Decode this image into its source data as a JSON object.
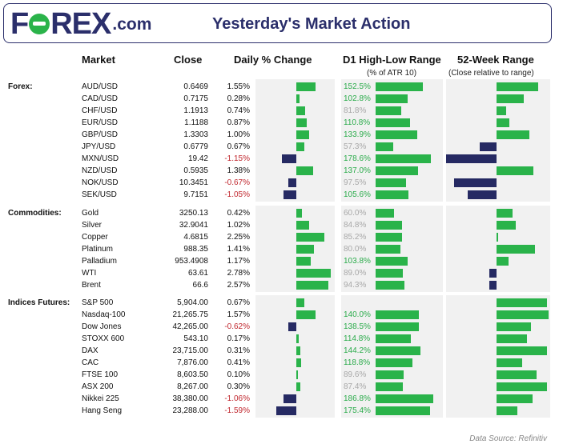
{
  "header": {
    "logo_text": "F",
    "logo_text2": "REX",
    "logo_suffix": ".com",
    "title": "Yesterday's Market Action"
  },
  "columns": {
    "market": "Market",
    "close": "Close",
    "daily": "Daily % Change",
    "d1": "D1 High-Low Range",
    "d1_sub": "(% of ATR 10)",
    "week52": "52-Week Range",
    "week52_sub": "(Close relative to range)"
  },
  "colors": {
    "green": "#2ab34a",
    "navy": "#262a63",
    "red": "#c0262d",
    "grey_text": "#a8a8a8"
  },
  "chart_data": {
    "type": "table",
    "title": "Yesterday's Market Action",
    "groups": [
      {
        "name": "Forex:",
        "rows": [
          {
            "market": "AUD/USD",
            "close": "0.6469",
            "daily": "1.55%",
            "daily_v": 1.55,
            "range": "152.5%",
            "range_v": 152.5,
            "range_hi": true,
            "w52": 0.79
          },
          {
            "market": "CAD/USD",
            "close": "0.7175",
            "daily": "0.28%",
            "daily_v": 0.28,
            "range": "102.8%",
            "range_v": 102.8,
            "range_hi": true,
            "w52": 0.52
          },
          {
            "market": "CHF/USD",
            "close": "1.1913",
            "daily": "0.74%",
            "daily_v": 0.74,
            "range": "81.8%",
            "range_v": 81.8,
            "range_hi": false,
            "w52": 0.18
          },
          {
            "market": "EUR/USD",
            "close": "1.1188",
            "daily": "0.87%",
            "daily_v": 0.87,
            "range": "110.8%",
            "range_v": 110.8,
            "range_hi": true,
            "w52": 0.24
          },
          {
            "market": "GBP/USD",
            "close": "1.3303",
            "daily": "1.00%",
            "daily_v": 1.0,
            "range": "133.9%",
            "range_v": 133.9,
            "range_hi": true,
            "w52": 0.62
          },
          {
            "market": "JPY/USD",
            "close": "0.6779",
            "daily": "0.67%",
            "daily_v": 0.67,
            "range": "57.3%",
            "range_v": 57.3,
            "range_hi": false,
            "w52": -0.32
          },
          {
            "market": "MXN/USD",
            "close": "19.42",
            "daily": "-1.15%",
            "daily_v": -1.15,
            "range": "178.6%",
            "range_v": 178.6,
            "range_hi": true,
            "w52": -0.95
          },
          {
            "market": "NZD/USD",
            "close": "0.5935",
            "daily": "1.38%",
            "daily_v": 1.38,
            "range": "137.0%",
            "range_v": 137.0,
            "range_hi": true,
            "w52": 0.7
          },
          {
            "market": "NOK/USD",
            "close": "10.3451",
            "daily": "-0.67%",
            "daily_v": -0.67,
            "range": "97.5%",
            "range_v": 97.5,
            "range_hi": false,
            "w52": -0.8
          },
          {
            "market": "SEK/USD",
            "close": "9.7151",
            "daily": "-1.05%",
            "daily_v": -1.05,
            "range": "105.6%",
            "range_v": 105.6,
            "range_hi": true,
            "w52": -0.54
          }
        ]
      },
      {
        "name": "Commodities:",
        "rows": [
          {
            "market": "Gold",
            "close": "3250.13",
            "daily": "0.42%",
            "daily_v": 0.42,
            "range": "60.0%",
            "range_v": 60.0,
            "range_hi": false,
            "w52": 0.3
          },
          {
            "market": "Silver",
            "close": "32.9041",
            "daily": "1.02%",
            "daily_v": 1.02,
            "range": "84.8%",
            "range_v": 84.8,
            "range_hi": false,
            "w52": 0.36
          },
          {
            "market": "Copper",
            "close": "4.6815",
            "daily": "2.25%",
            "daily_v": 2.25,
            "range": "85.2%",
            "range_v": 85.2,
            "range_hi": false,
            "w52": 0.02
          },
          {
            "market": "Platinum",
            "close": "988.35",
            "daily": "1.41%",
            "daily_v": 1.41,
            "range": "80.0%",
            "range_v": 80.0,
            "range_hi": false,
            "w52": 0.72
          },
          {
            "market": "Palladium",
            "close": "953.4908",
            "daily": "1.17%",
            "daily_v": 1.17,
            "range": "103.8%",
            "range_v": 103.8,
            "range_hi": true,
            "w52": 0.22
          },
          {
            "market": "WTI",
            "close": "63.61",
            "daily": "2.78%",
            "daily_v": 2.78,
            "range": "89.0%",
            "range_v": 89.0,
            "range_hi": false,
            "w52": -0.14
          },
          {
            "market": "Brent",
            "close": "66.6",
            "daily": "2.57%",
            "daily_v": 2.57,
            "range": "94.3%",
            "range_v": 94.3,
            "range_hi": false,
            "w52": -0.14
          }
        ]
      },
      {
        "name": "Indices Futures:",
        "rows": [
          {
            "market": "S&P 500",
            "close": "5,904.00",
            "daily": "0.67%",
            "daily_v": 0.67,
            "range": "",
            "range_v": 0,
            "range_hi": false,
            "w52": 0.96
          },
          {
            "market": "Nasdaq-100",
            "close": "21,265.75",
            "daily": "1.57%",
            "daily_v": 1.57,
            "range": "140.0%",
            "range_v": 140.0,
            "range_hi": true,
            "w52": 0.98
          },
          {
            "market": "Dow Jones",
            "close": "42,265.00",
            "daily": "-0.62%",
            "daily_v": -0.62,
            "range": "138.5%",
            "range_v": 138.5,
            "range_hi": true,
            "w52": 0.65
          },
          {
            "market": "STOXX 600",
            "close": "543.10",
            "daily": "0.17%",
            "daily_v": 0.17,
            "range": "114.8%",
            "range_v": 114.8,
            "range_hi": true,
            "w52": 0.58
          },
          {
            "market": "DAX",
            "close": "23,715.00",
            "daily": "0.31%",
            "daily_v": 0.31,
            "range": "144.2%",
            "range_v": 144.2,
            "range_hi": true,
            "w52": 0.96
          },
          {
            "market": "CAC",
            "close": "7,876.00",
            "daily": "0.41%",
            "daily_v": 0.41,
            "range": "118.8%",
            "range_v": 118.8,
            "range_hi": true,
            "w52": 0.48
          },
          {
            "market": "FTSE 100",
            "close": "8,603.50",
            "daily": "0.10%",
            "daily_v": 0.1,
            "range": "89.6%",
            "range_v": 89.6,
            "range_hi": false,
            "w52": 0.75
          },
          {
            "market": "ASX 200",
            "close": "8,267.00",
            "daily": "0.30%",
            "daily_v": 0.3,
            "range": "87.4%",
            "range_v": 87.4,
            "range_hi": false,
            "w52": 0.96
          },
          {
            "market": "Nikkei 225",
            "close": "38,380.00",
            "daily": "-1.06%",
            "daily_v": -1.06,
            "range": "186.8%",
            "range_v": 186.8,
            "range_hi": true,
            "w52": 0.68
          },
          {
            "market": "Hang Seng",
            "close": "23,288.00",
            "daily": "-1.59%",
            "daily_v": -1.59,
            "range": "175.4%",
            "range_v": 175.4,
            "range_hi": true,
            "w52": 0.4
          }
        ]
      }
    ]
  },
  "footer": {
    "source": "Data Source: Refinitiv"
  }
}
